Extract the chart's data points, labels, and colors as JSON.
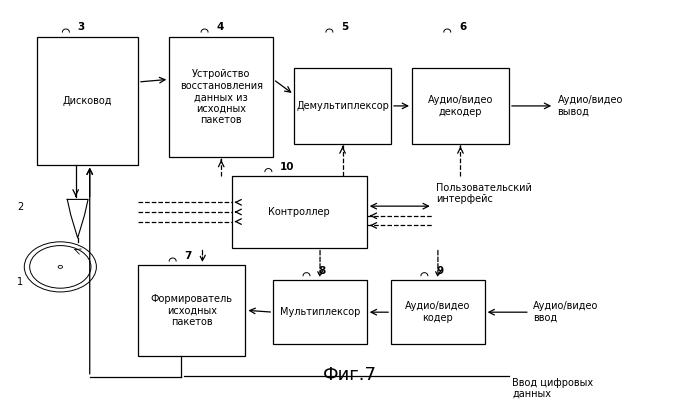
{
  "title": "Фиг.7",
  "background_color": "#ffffff",
  "font_size": 7.0,
  "title_font_size": 13,
  "boxes": {
    "drive": [
      0.05,
      0.58,
      0.145,
      0.33
    ],
    "pack_restore": [
      0.24,
      0.6,
      0.15,
      0.31
    ],
    "demux": [
      0.42,
      0.635,
      0.14,
      0.195
    ],
    "av_decoder": [
      0.59,
      0.635,
      0.14,
      0.195
    ],
    "controller": [
      0.33,
      0.365,
      0.195,
      0.185
    ],
    "pack_form": [
      0.195,
      0.085,
      0.155,
      0.235
    ],
    "mux": [
      0.39,
      0.115,
      0.135,
      0.165
    ],
    "av_encoder": [
      0.56,
      0.115,
      0.135,
      0.165
    ]
  },
  "labels": {
    "drive": [
      "Дисковод"
    ],
    "pack_restore": [
      "Устройство",
      "восстановления",
      "данных из",
      "исходных",
      "пакетов"
    ],
    "demux": [
      "Демультиплексор"
    ],
    "av_decoder": [
      "Аудио/видео",
      "декодер"
    ],
    "controller": [
      "Контроллер"
    ],
    "pack_form": [
      "Формирователь",
      "исходных",
      "пакетов"
    ],
    "mux": [
      "Мультиплексор"
    ],
    "av_encoder": [
      "Аудио/видео",
      "кодер"
    ]
  },
  "nums": {
    "drive": [
      "3",
      0.108,
      0.924
    ],
    "pack_restore": [
      "4",
      0.308,
      0.924
    ],
    "demux": [
      "5",
      0.488,
      0.924
    ],
    "av_decoder": [
      "6",
      0.658,
      0.924
    ],
    "controller": [
      "10",
      0.4,
      0.562
    ],
    "pack_form": [
      "7",
      0.262,
      0.33
    ],
    "mux": [
      "8",
      0.455,
      0.292
    ],
    "av_encoder": [
      "9",
      0.625,
      0.292
    ]
  }
}
